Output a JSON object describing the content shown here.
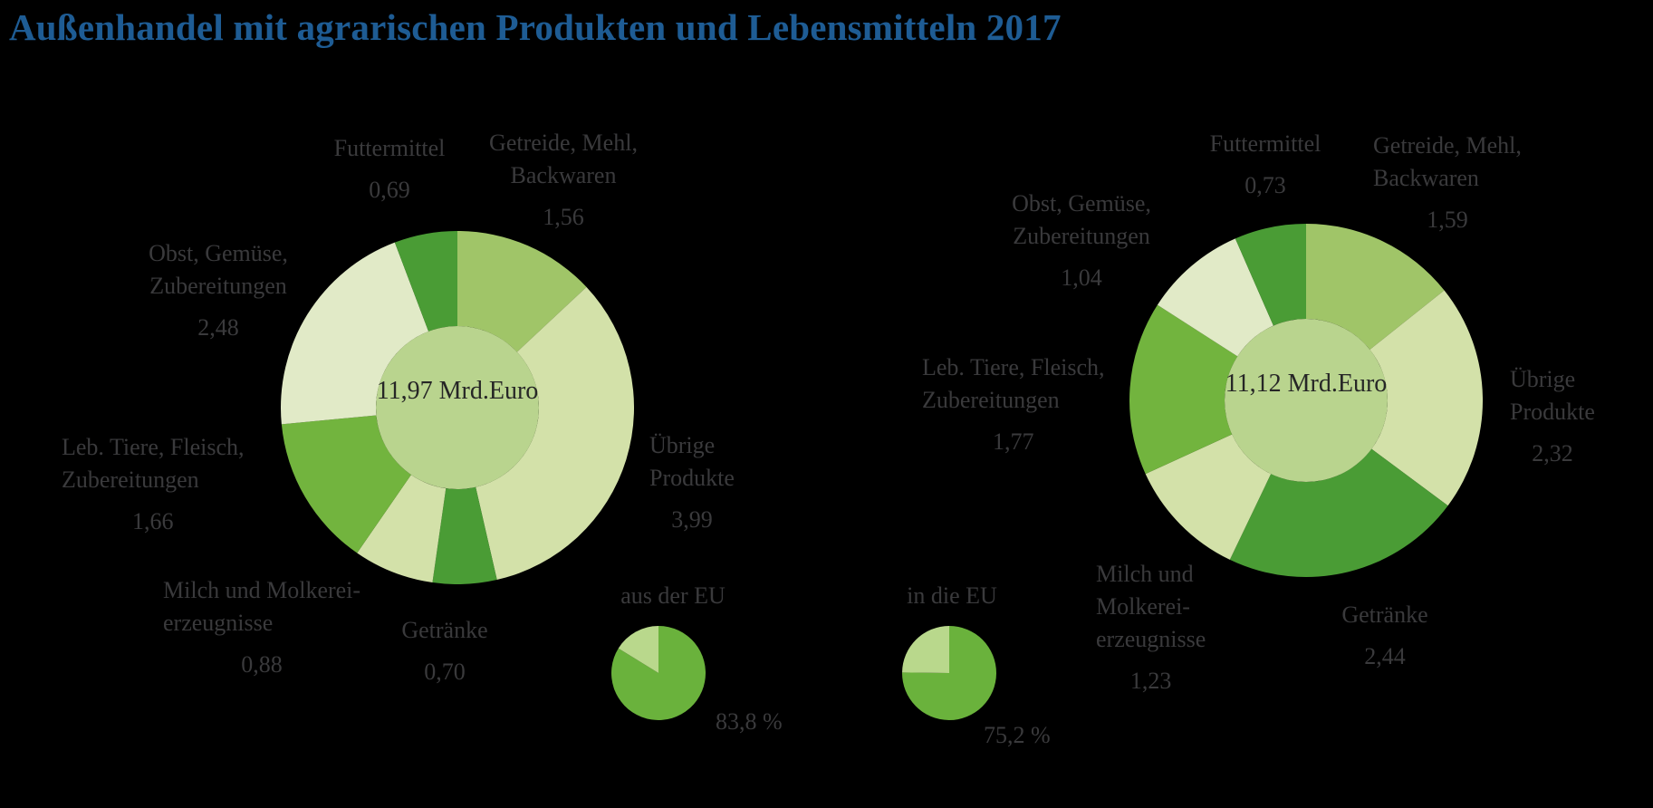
{
  "title": "Außenhandel mit agrarischen Produkten und Lebensmitteln 2017",
  "colors": {
    "dark_green": "#4a9c35",
    "medium_green": "#a0c568",
    "bright_green": "#72b43e",
    "pale_green": "#d3e1a9",
    "very_pale_green": "#e1eac7",
    "center_green": "#b9d48e",
    "pie_dark": "#6ab23c",
    "pie_pale": "#b9d88c",
    "title_blue": "#1e5c94",
    "label_gray": "#3a3a3c",
    "center_text": "#262626",
    "background": "#000000"
  },
  "chart_data": [
    {
      "id": "trade_imports",
      "type": "pie",
      "subtype": "donut",
      "center_label_lines": [
        "11,97 Mrd.",
        "Euro"
      ],
      "total_value": 11.97,
      "segments": [
        {
          "id": "getreide",
          "label_lines": [
            "Getreide, Mehl,",
            "Backwaren"
          ],
          "value": 1.56,
          "value_text": "1,56",
          "color": "medium_green"
        },
        {
          "id": "uebrige",
          "label_lines": [
            "Übrige",
            "Produkte"
          ],
          "value": 3.99,
          "value_text": "3,99",
          "color": "pale_green"
        },
        {
          "id": "getraenke",
          "label_lines": [
            "Getränke"
          ],
          "value": 0.7,
          "value_text": "0,70",
          "color": "dark_green"
        },
        {
          "id": "milch",
          "label_lines": [
            "Milch und Molkerei-",
            "erzeugnisse"
          ],
          "value": 0.88,
          "value_text": "0,88",
          "color": "pale_green"
        },
        {
          "id": "tiere",
          "label_lines": [
            "Leb. Tiere, Fleisch,",
            "Zubereitungen"
          ],
          "value": 1.66,
          "value_text": "1,66",
          "color": "bright_green"
        },
        {
          "id": "obst",
          "label_lines": [
            "Obst, Gemüse,",
            "Zubereitungen"
          ],
          "value": 2.48,
          "value_text": "2,48",
          "color": "very_pale_green"
        },
        {
          "id": "futtermittel",
          "label_lines": [
            "Futtermittel"
          ],
          "value": 0.69,
          "value_text": "0,69",
          "color": "dark_green"
        }
      ]
    },
    {
      "id": "trade_exports",
      "type": "pie",
      "subtype": "donut",
      "center_label_lines": [
        "11,12 Mrd.",
        "Euro"
      ],
      "total_value": 11.12,
      "segments": [
        {
          "id": "getreide",
          "label_lines": [
            "Getreide, Mehl,",
            "Backwaren"
          ],
          "value": 1.59,
          "value_text": "1,59",
          "color": "medium_green"
        },
        {
          "id": "uebrige",
          "label_lines": [
            "Übrige",
            "Produkte"
          ],
          "value": 2.32,
          "value_text": "2,32",
          "color": "pale_green"
        },
        {
          "id": "getraenke",
          "label_lines": [
            "Getränke"
          ],
          "value": 2.44,
          "value_text": "2,44",
          "color": "dark_green"
        },
        {
          "id": "milch",
          "label_lines": [
            "Milch und",
            "Molkerei-",
            "erzeugnisse"
          ],
          "value": 1.23,
          "value_text": "1,23",
          "color": "pale_green"
        },
        {
          "id": "tiere",
          "label_lines": [
            "Leb. Tiere, Fleisch,",
            "Zubereitungen"
          ],
          "value": 1.77,
          "value_text": "1,77",
          "color": "bright_green"
        },
        {
          "id": "obst",
          "label_lines": [
            "Obst, Gemüse,",
            "Zubereitungen"
          ],
          "value": 1.04,
          "value_text": "1,04",
          "color": "very_pale_green"
        },
        {
          "id": "futtermittel",
          "label_lines": [
            "Futtermittel"
          ],
          "value": 0.73,
          "value_text": "0,73",
          "color": "dark_green"
        }
      ]
    },
    {
      "id": "eu_imports",
      "type": "pie",
      "label": "aus der EU",
      "value": 83.8,
      "value_text": "83,8 %",
      "slice_color": "pie_dark",
      "remainder_color": "pie_pale"
    },
    {
      "id": "eu_exports",
      "type": "pie",
      "label": "in die EU",
      "value": 75.2,
      "value_text": "75,2 %",
      "slice_color": "pie_dark",
      "remainder_color": "pie_pale"
    }
  ]
}
